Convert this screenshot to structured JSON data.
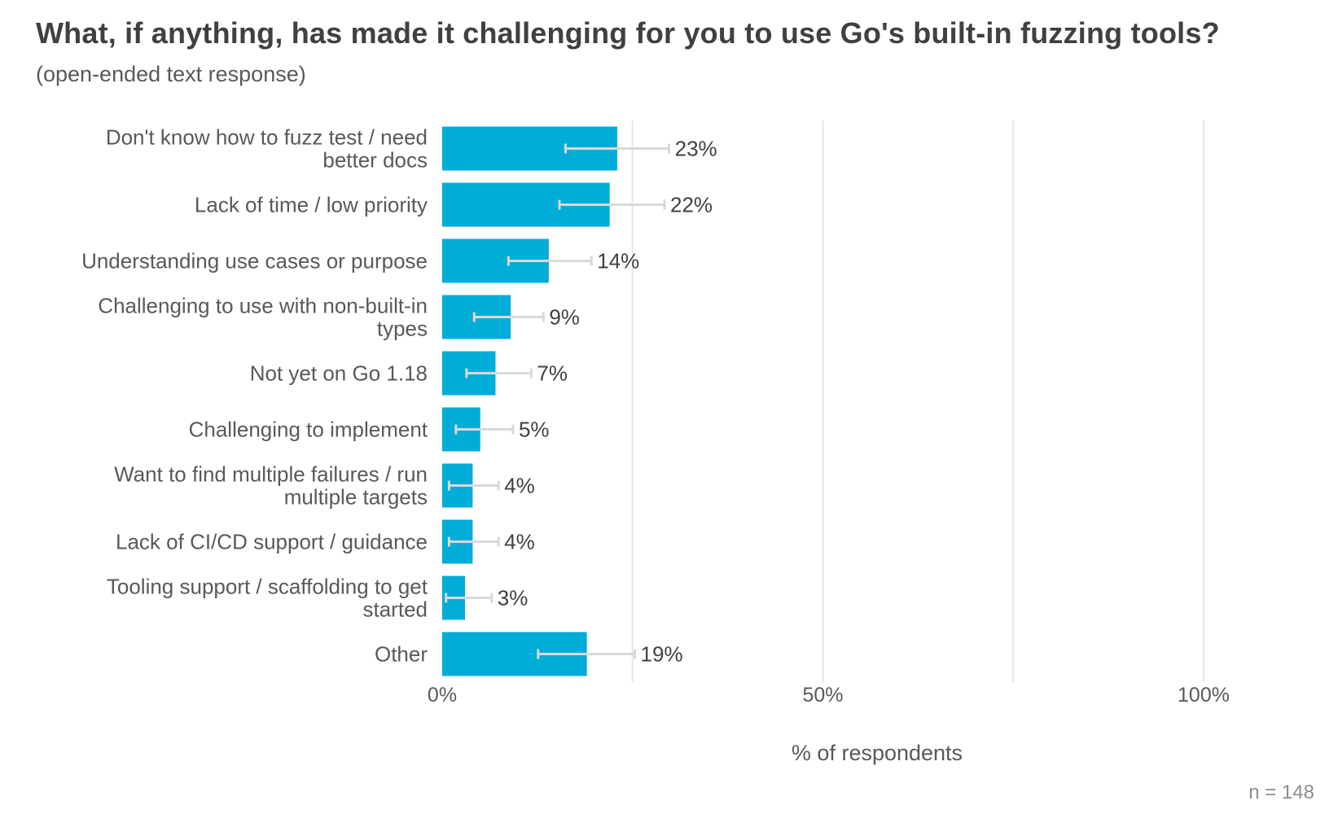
{
  "title": "What, if anything, has made it challenging for you to use Go's built-in fuzzing tools?",
  "subtitle": "(open-ended text response)",
  "n_label": "n =  148",
  "colors": {
    "bar": "#00ADD8",
    "grid": "#e6e6e6",
    "error_bar": "#d9d9d9"
  },
  "chart_data": {
    "type": "bar",
    "orientation": "horizontal",
    "title": "What, if anything, has made it challenging for you to use Go's built-in fuzzing tools?",
    "subtitle": "(open-ended text response)",
    "xlabel": "% of respondents",
    "ylabel": "",
    "xlim": [
      0,
      100
    ],
    "xticks": [
      "0%",
      "50%",
      "100%"
    ],
    "grid": true,
    "legend": "none",
    "n": 148,
    "categories": [
      [
        "Don't know how to fuzz test / need",
        "better docs"
      ],
      [
        "Lack of time / low priority"
      ],
      [
        "Understanding use cases or purpose"
      ],
      [
        "Challenging to use with non-built-in",
        "types"
      ],
      [
        "Not yet on Go 1.18"
      ],
      [
        "Challenging to implement"
      ],
      [
        "Want to find multiple failures / run",
        "multiple targets"
      ],
      [
        "Lack of CI/CD support / guidance"
      ],
      [
        "Tooling support / scaffolding to get",
        "started"
      ],
      [
        "Other"
      ]
    ],
    "values": [
      23,
      22,
      14,
      9,
      7,
      5,
      4,
      4,
      3,
      19
    ],
    "value_labels": [
      "23%",
      "22%",
      "14%",
      "9%",
      "7%",
      "5%",
      "4%",
      "4%",
      "3%",
      "19%"
    ],
    "error_low": [
      16.2,
      15.4,
      8.7,
      4.2,
      3.2,
      1.8,
      0.9,
      0.9,
      0.5,
      12.6
    ],
    "error_high": [
      29.8,
      29.2,
      19.6,
      13.3,
      11.7,
      9.3,
      7.4,
      7.4,
      6.5,
      25.3
    ]
  }
}
